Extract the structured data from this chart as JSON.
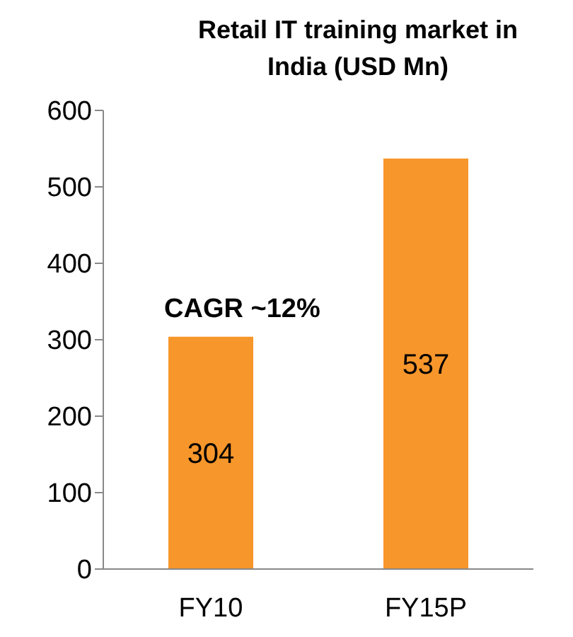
{
  "chart_data": {
    "type": "bar",
    "title": "Retail IT training market in India (USD Mn)",
    "categories": [
      "FY10",
      "FY15P"
    ],
    "values": [
      304,
      537
    ],
    "color": "#f7962b",
    "ylim": [
      0,
      600
    ],
    "yticks": [
      0,
      100,
      200,
      300,
      400,
      500,
      600
    ],
    "data_labels": true,
    "grid": false,
    "annotations": [
      "CAGR ~12%"
    ]
  }
}
